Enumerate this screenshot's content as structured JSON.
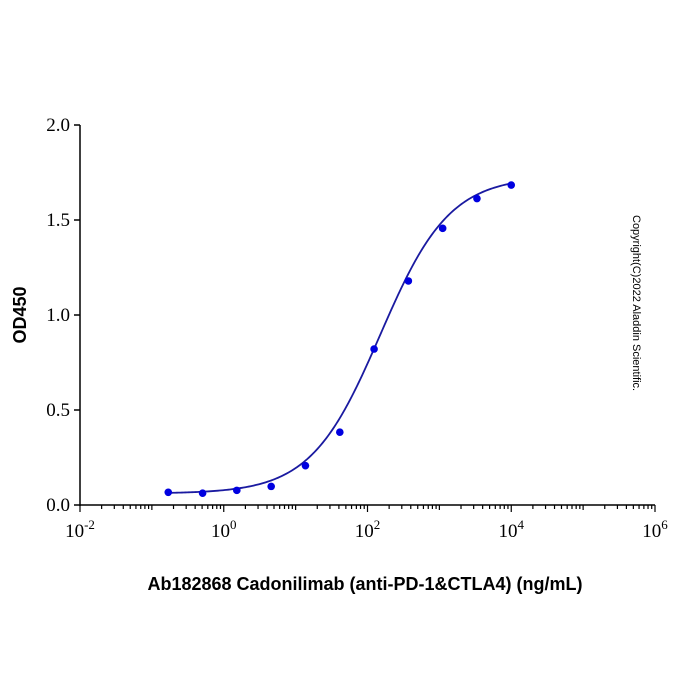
{
  "chart_data": {
    "type": "scatter",
    "title": "",
    "xlabel": "Ab182868 Cadonilimab (anti-PD-1&CTLA4) (ng/mL)",
    "ylabel": "OD450",
    "xscale": "log",
    "xlim": [
      0.01,
      1000000
    ],
    "ylim": [
      0,
      2.0
    ],
    "x_ticks": [
      {
        "base": "10",
        "exp": "-2"
      },
      {
        "base": "10",
        "exp": "0"
      },
      {
        "base": "10",
        "exp": "2"
      },
      {
        "base": "10",
        "exp": "4"
      },
      {
        "base": "10",
        "exp": "6"
      }
    ],
    "y_ticks": [
      "0.0",
      "0.5",
      "1.0",
      "1.5",
      "2.0"
    ],
    "grid": false,
    "series": [
      {
        "name": "Cadonilimab",
        "color": "#0000e0",
        "line_color": "#1a1aa0",
        "x": [
          0.169,
          0.508,
          1.52,
          4.57,
          13.7,
          41.2,
          123.5,
          370.4,
          1111,
          3333,
          10000
        ],
        "y": [
          0.067,
          0.062,
          0.077,
          0.098,
          0.207,
          0.383,
          0.821,
          1.179,
          1.456,
          1.613,
          1.684
        ],
        "fit": {
          "model": "4PL",
          "bottom": 0.06,
          "top": 1.73,
          "ec50": 150,
          "hill": 0.9
        }
      }
    ],
    "annotation": "Copyright(C)2022 Aladdin Scientific."
  }
}
